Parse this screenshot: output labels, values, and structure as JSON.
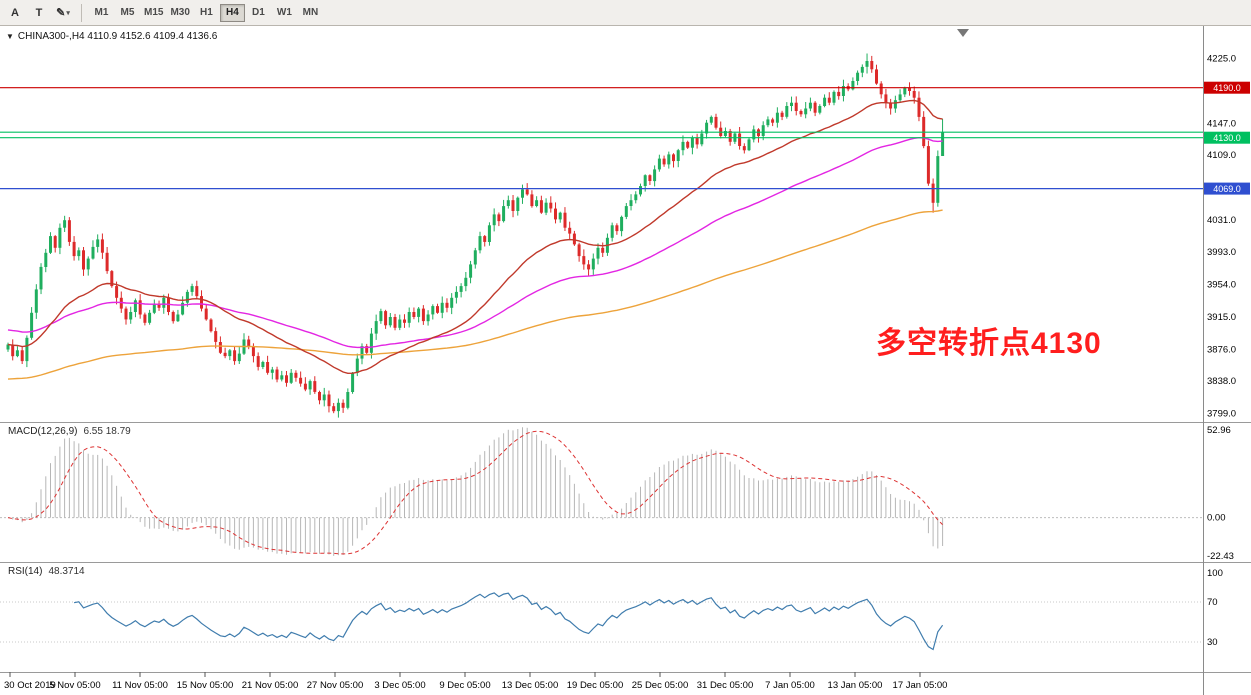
{
  "toolbar": {
    "buttons": [
      {
        "name": "cursor-tool",
        "label": "A"
      },
      {
        "name": "text-tool",
        "label": "T"
      },
      {
        "name": "draw-tool",
        "label": "✎",
        "caret": "▾"
      }
    ],
    "timeframes": [
      "M1",
      "M5",
      "M15",
      "M30",
      "H1",
      "H4",
      "D1",
      "W1",
      "MN"
    ],
    "active_timeframe": "H4"
  },
  "icons": {
    "symbol_dropdown": "▼",
    "shift_marker": "▼"
  },
  "chart": {
    "annotation": "多空转折点4130",
    "annotation_color": "#ff1e1e",
    "up_color": "#1fae5e",
    "down_color": "#dd2a2a",
    "ma_colors": {
      "fast": "#c0392b",
      "mid": "#e326e3",
      "slow": "#eda33b"
    },
    "price_ticks": [
      "4225.0",
      "4147.0",
      "4109.0",
      "4031.0",
      "3993.0",
      "3954.0",
      "3915.0",
      "3876.0",
      "3838.0",
      "3799.0"
    ],
    "hlines": [
      {
        "value": 4190.0,
        "color": "#cc0000",
        "badge": "4190.0"
      },
      {
        "value": 4136.6,
        "color": "#00c060",
        "badge": null
      },
      {
        "value": 4130.0,
        "color": "#00c060",
        "badge": "4130.0"
      },
      {
        "value": 4069.0,
        "color": "#2f4fd0",
        "badge": "4069.0"
      }
    ]
  },
  "chart_data": {
    "type": "candlestick",
    "symbol": "CHINA300-",
    "timeframe": "H4",
    "header_line": "CHINA300-,H4  4110.9 4152.6 4109.4 4136.6",
    "last_bar": {
      "open": 4110.9,
      "high": 4152.6,
      "low": 4109.4,
      "close": 4136.6
    },
    "y_axis_range": [
      3789,
      4264
    ],
    "closes": [
      3882,
      3868,
      3875,
      3862,
      3890,
      3920,
      3948,
      3975,
      3992,
      4012,
      3998,
      4022,
      4031,
      4005,
      3988,
      3995,
      3972,
      3985,
      3999,
      4008,
      3992,
      3970,
      3952,
      3938,
      3925,
      3912,
      3921,
      3935,
      3918,
      3908,
      3920,
      3931,
      3926,
      3938,
      3921,
      3910,
      3918,
      3932,
      3945,
      3952,
      3940,
      3925,
      3912,
      3898,
      3885,
      3872,
      3868,
      3875,
      3862,
      3871,
      3888,
      3880,
      3868,
      3855,
      3861,
      3848,
      3852,
      3840,
      3845,
      3836,
      3848,
      3842,
      3835,
      3828,
      3838,
      3825,
      3815,
      3822,
      3808,
      3802,
      3812,
      3806,
      3825,
      3848,
      3865,
      3880,
      3872,
      3895,
      3910,
      3922,
      3905,
      3915,
      3902,
      3912,
      3908,
      3921,
      3915,
      3925,
      3910,
      3918,
      3928,
      3920,
      3932,
      3926,
      3938,
      3945,
      3952,
      3962,
      3978,
      3995,
      4012,
      4005,
      4025,
      4038,
      4030,
      4048,
      4055,
      4042,
      4058,
      4068,
      4062,
      4048,
      4055,
      4040,
      4052,
      4045,
      4032,
      4040,
      4022,
      4015,
      4002,
      3988,
      3978,
      3972,
      3985,
      3998,
      3992,
      4010,
      4025,
      4018,
      4035,
      4048,
      4055,
      4062,
      4072,
      4085,
      4078,
      4092,
      4105,
      4098,
      4110,
      4102,
      4115,
      4125,
      4118,
      4130,
      4122,
      4135,
      4148,
      4155,
      4142,
      4132,
      4138,
      4125,
      4135,
      4120,
      4115,
      4128,
      4140,
      4132,
      4145,
      4152,
      4148,
      4160,
      4155,
      4168,
      4172,
      4162,
      4158,
      4165,
      4172,
      4160,
      4168,
      4178,
      4172,
      4185,
      4180,
      4192,
      4188,
      4198,
      4208,
      4215,
      4222,
      4212,
      4195,
      4182,
      4172,
      4165,
      4175,
      4182,
      4190,
      4186,
      4178,
      4155,
      4120,
      4075,
      4052,
      4108,
      4136.6
    ],
    "low_overrides": {
      "69": 3799.5,
      "196": 4040,
      "198": 4109.4
    },
    "high_overrides": {
      "182": 4231,
      "198": 4152.6
    },
    "x_labels": [
      "30 Oct 2019",
      "5 Nov 05:00",
      "11 Nov 05:00",
      "15 Nov 05:00",
      "21 Nov 05:00",
      "27 Nov 05:00",
      "3 Dec 05:00",
      "9 Dec 05:00",
      "13 Dec 05:00",
      "19 Dec 05:00",
      "25 Dec 05:00",
      "31 Dec 05:00",
      "7 Jan 05:00",
      "13 Jan 05:00",
      "17 Jan 05:00"
    ],
    "indicators": {
      "macd": {
        "title": "MACD(12,26,9)",
        "values_text": "6.55 18.79",
        "scale_labels": [
          "52.96",
          "0.00",
          "-22.43"
        ]
      },
      "rsi": {
        "title": "RSI(14)",
        "value_text": "48.3714",
        "scale_labels": [
          "100",
          "70",
          "30"
        ]
      }
    }
  }
}
